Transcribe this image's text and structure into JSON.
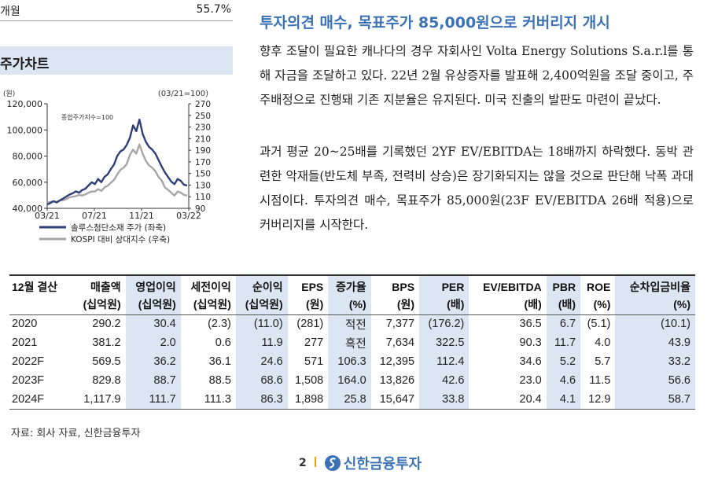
{
  "top_row": {
    "label": "개월",
    "value": "55.7%"
  },
  "chart_section": {
    "title": "주가차트"
  },
  "chart_data": {
    "type": "line",
    "left_unit": "(원)",
    "right_unit": "(03/21=100)",
    "annotation": "종합주가지수=100",
    "x_ticks": [
      "03/21",
      "07/21",
      "11/21",
      "03/22"
    ],
    "left_ticks": [
      "40,000",
      "60,000",
      "80,000",
      "100,000",
      "120,000"
    ],
    "left_ylim": [
      40000,
      120000
    ],
    "right_ticks": [
      "90",
      "110",
      "130",
      "150",
      "170",
      "190",
      "210",
      "230",
      "250",
      "270"
    ],
    "right_ylim": [
      90,
      270
    ],
    "series": [
      {
        "name": "솔루스첨단소재 주가 (좌축)",
        "color": "#2e3f7a",
        "axis": "left",
        "values": [
          43000,
          44000,
          45500,
          44500,
          46000,
          47500,
          49000,
          50500,
          51500,
          53000,
          52000,
          54000,
          55000,
          57500,
          60000,
          58500,
          62500,
          60000,
          64000,
          66000,
          70000,
          73500,
          80000,
          83500,
          85000,
          88500,
          94000,
          103500,
          99000,
          108000,
          97000,
          91000,
          87000,
          85000,
          82000,
          77000,
          72000,
          67500,
          64000,
          60500,
          58500,
          62500,
          61000,
          58000,
          57500
        ]
      },
      {
        "name": "KOSPI 대비 상대지수 (우축)",
        "color": "#a6a6a6",
        "axis": "right",
        "values": [
          100,
          101,
          102,
          101,
          104,
          104,
          106,
          109,
          110,
          111,
          113,
          112,
          114,
          117,
          119,
          119,
          123,
          120,
          126,
          129,
          134,
          139,
          148,
          156,
          160,
          166,
          182,
          191,
          184,
          200,
          184,
          172,
          164,
          160,
          154,
          144,
          138,
          126,
          122,
          117,
          112,
          119,
          117,
          113,
          112
        ]
      }
    ]
  },
  "article": {
    "title": "투자의견 매수, 목표주가 85,000원으로 커버리지 개시",
    "p1": "향후 조달이 필요한 캐나다의 경우 자회사인 Volta Energy Solutions S.a.r.l를 통해 자금을 조달하고 있다. 22년 2월 유상증자를 발표해 2,400억원을 조달 중이고, 주주배정으로 진행돼 기존 지분율은 유지된다. 미국 진출의 발판도 마련이 끝났다.",
    "p2": "과거 평균 20~25배를 기록했던 2YF EV/EBITDA는 18배까지 하락했다. 동박 관련한 악재들(반도체 부족, 전력비 상승)은 장기화되지는 않을 것으로 판단해 낙폭 과대 시점이다. 투자의견 매수, 목표주가 85,000원(23F EV/EBITDA 26배 적용)으로 커버리지를 시작한다."
  },
  "table": {
    "headers": [
      {
        "l1": "12월 결산",
        "l2": "",
        "hl": false
      },
      {
        "l1": "매출액",
        "l2": "(십억원)",
        "hl": false
      },
      {
        "l1": "영업이익",
        "l2": "(십억원)",
        "hl": true
      },
      {
        "l1": "세전이익",
        "l2": "(십억원)",
        "hl": false
      },
      {
        "l1": "순이익",
        "l2": "(십억원)",
        "hl": true
      },
      {
        "l1": "EPS",
        "l2": "(원)",
        "hl": false
      },
      {
        "l1": "증가율",
        "l2": "(%)",
        "hl": true
      },
      {
        "l1": "BPS",
        "l2": "(원)",
        "hl": false
      },
      {
        "l1": "PER",
        "l2": "(배)",
        "hl": true
      },
      {
        "l1": "EV/EBITDA",
        "l2": "(배)",
        "hl": false
      },
      {
        "l1": "PBR",
        "l2": "(배)",
        "hl": true
      },
      {
        "l1": "ROE",
        "l2": "(%)",
        "hl": false
      },
      {
        "l1": "순차입금비율",
        "l2": "(%)",
        "hl": true
      }
    ],
    "rows": [
      [
        "2020",
        "290.2",
        "30.4",
        "(2.3)",
        "(11.0)",
        "(281)",
        "적전",
        "7,377",
        "(176.2)",
        "36.5",
        "6.7",
        "(5.1)",
        "(10.1)"
      ],
      [
        "2021",
        "381.2",
        "2.0",
        "0.6",
        "11.9",
        "277",
        "흑전",
        "7,634",
        "322.5",
        "90.3",
        "11.7",
        "4.0",
        "43.9"
      ],
      [
        "2022F",
        "569.5",
        "36.2",
        "36.1",
        "24.6",
        "571",
        "106.3",
        "12,395",
        "112.4",
        "34.6",
        "5.2",
        "5.7",
        "33.2"
      ],
      [
        "2023F",
        "829.8",
        "88.7",
        "88.5",
        "68.6",
        "1,508",
        "164.0",
        "13,826",
        "42.6",
        "23.0",
        "4.6",
        "11.5",
        "56.6"
      ],
      [
        "2024F",
        "1,117.9",
        "111.7",
        "111.3",
        "86.3",
        "1,898",
        "25.8",
        "15,647",
        "33.8",
        "20.4",
        "4.1",
        "12.9",
        "58.7"
      ]
    ]
  },
  "source": "자료: 회사 자료, 신한금융투자",
  "footer": {
    "page": "2",
    "brand": "신한금융투자",
    "brand_color": "#3b72b5"
  }
}
